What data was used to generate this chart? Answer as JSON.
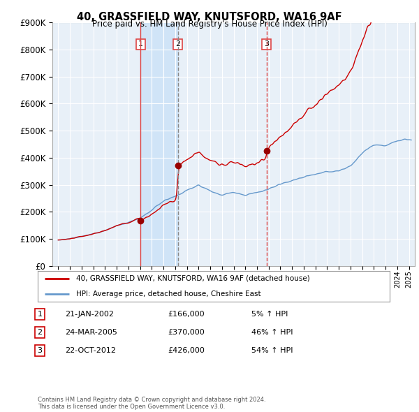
{
  "title": "40, GRASSFIELD WAY, KNUTSFORD, WA16 9AF",
  "subtitle": "Price paid vs. HM Land Registry's House Price Index (HPI)",
  "legend_label_red": "40, GRASSFIELD WAY, KNUTSFORD, WA16 9AF (detached house)",
  "legend_label_blue": "HPI: Average price, detached house, Cheshire East",
  "footer_line1": "Contains HM Land Registry data © Crown copyright and database right 2024.",
  "footer_line2": "This data is licensed under the Open Government Licence v3.0.",
  "transactions": [
    {
      "num": 1,
      "date": "21-JAN-2002",
      "price": "£166,000",
      "pct": "5% ↑ HPI"
    },
    {
      "num": 2,
      "date": "24-MAR-2005",
      "price": "£370,000",
      "pct": "46% ↑ HPI"
    },
    {
      "num": 3,
      "date": "22-OCT-2012",
      "price": "£426,000",
      "pct": "54% ↑ HPI"
    }
  ],
  "sale_dates": [
    2002.055,
    2005.23,
    2012.81
  ],
  "sale_prices": [
    166000,
    370000,
    426000
  ],
  "ylim": [
    0,
    900000
  ],
  "yticks": [
    0,
    100000,
    200000,
    300000,
    400000,
    500000,
    600000,
    700000,
    800000,
    900000
  ],
  "xlim_start": 1994.5,
  "xlim_end": 2025.5,
  "grid_color": "#cccccc",
  "background_color": "#ffffff",
  "plot_bg_color": "#e8f0f8",
  "shade_color": "#d0e4f7",
  "red_color": "#cc0000",
  "blue_color": "#6699cc",
  "vline1_color": "#dd4444",
  "vline2_color": "#888888",
  "vline3_color": "#dd4444",
  "label_box_color": "#dd4444"
}
